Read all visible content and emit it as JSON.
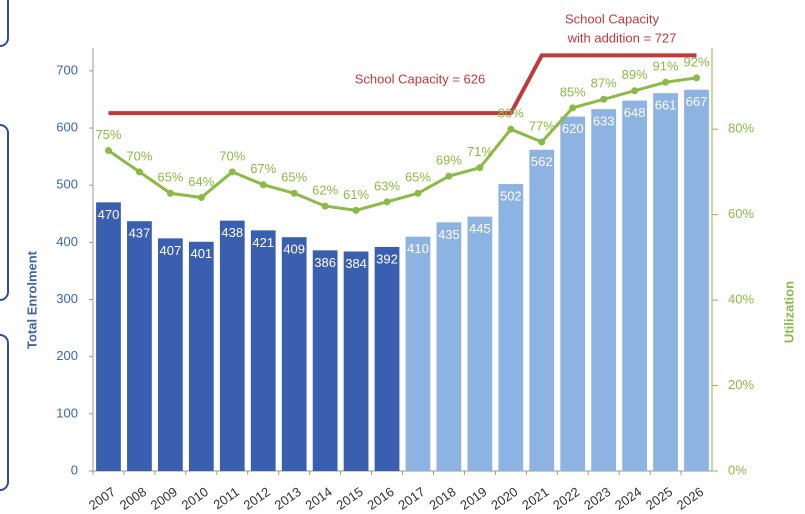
{
  "chart_data": {
    "type": "bar",
    "categories": [
      "2007",
      "2008",
      "2009",
      "2010",
      "2011",
      "2012",
      "2013",
      "2014",
      "2015",
      "2016",
      "2017",
      "2018",
      "2019",
      "2020",
      "2021",
      "2022",
      "2023",
      "2024",
      "2025",
      "2026"
    ],
    "y_label": "Total Enrolment",
    "y2_label": "Utilization",
    "annotations": [
      "School Capacity = 626",
      "School Capacity",
      "with addition = 727"
    ],
    "ylim": [
      0,
      740
    ],
    "yticks": [
      0,
      100,
      200,
      300,
      400,
      500,
      600,
      700
    ],
    "y2lim": [
      0,
      99
    ],
    "y2ticks": [
      {
        "value": 0,
        "label": "0%"
      },
      {
        "value": 20,
        "label": "20%"
      },
      {
        "value": 40,
        "label": "40%"
      },
      {
        "value": 60,
        "label": "60%"
      },
      {
        "value": 80,
        "label": "80%"
      }
    ],
    "series": [
      {
        "type": "bar",
        "values": [
          470,
          437,
          407,
          401,
          438,
          421,
          409,
          386,
          384,
          392,
          410,
          435,
          445,
          502,
          562,
          620,
          633,
          648,
          661,
          667
        ],
        "colors": [
          "#3a5fb0",
          "#3a5fb0",
          "#3a5fb0",
          "#3a5fb0",
          "#3a5fb0",
          "#3a5fb0",
          "#3a5fb0",
          "#3a5fb0",
          "#3a5fb0",
          "#3a5fb0",
          "#8db3e2",
          "#8db3e2",
          "#8db3e2",
          "#8db3e2",
          "#8db3e2",
          "#8db3e2",
          "#8db3e2",
          "#8db3e2",
          "#8db3e2",
          "#8db3e2"
        ]
      },
      {
        "type": "line",
        "color": "#c0393b",
        "values": [
          626,
          626,
          626,
          626,
          626,
          626,
          626,
          626,
          626,
          626,
          626,
          626,
          626,
          626,
          727,
          727,
          727,
          727,
          727,
          727
        ]
      },
      {
        "type": "line",
        "axis": "y2",
        "color": "#8cba46",
        "values": [
          75,
          70,
          65,
          64,
          70,
          67,
          65,
          62,
          61,
          63,
          65,
          69,
          71,
          80,
          77,
          85,
          87,
          89,
          91,
          92
        ],
        "value_labels": [
          "75%",
          "70%",
          "65%",
          "64%",
          "70%",
          "67%",
          "65%",
          "62%",
          "61%",
          "63%",
          "65%",
          "69%",
          "71%",
          "80%",
          "77%",
          "85%",
          "87%",
          "89%",
          "91%",
          "92%"
        ]
      }
    ]
  }
}
